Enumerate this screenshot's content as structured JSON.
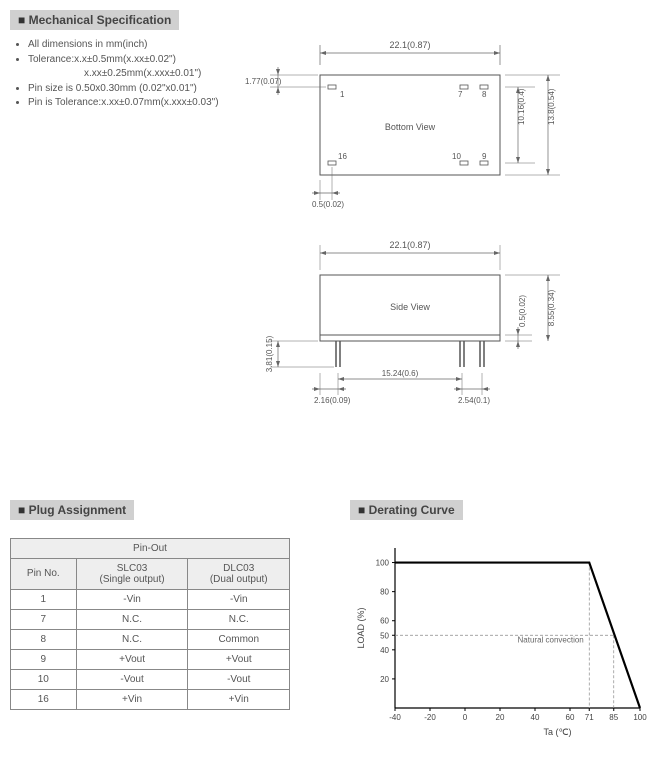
{
  "mech_spec": {
    "title": "Mechanical Specification",
    "notes": [
      "All dimensions in mm(inch)",
      "Tolerance:x.x±0.5mm(x.xx±0.02\")",
      "x.xx±0.25mm(x.xxx±0.01\")",
      "Pin size is 0.50x0.30mm (0.02\"x0.01\")",
      "Pin is Tolerance:x.xx±0.07mm(x.xxx±0.03\")"
    ],
    "bottom_view": {
      "label": "Bottom View",
      "width_dim": "22.1(0.87)",
      "height_inner": "10.16(0.4)",
      "height_outer": "13.8(0.54)",
      "left_offset": "1.77(0.07)",
      "bottom_offset": "0.5(0.02)",
      "pins": {
        "p1": "1",
        "p7": "7",
        "p8": "8",
        "p9": "9",
        "p10": "10",
        "p16": "16"
      }
    },
    "side_view": {
      "label": "Side View",
      "width_dim": "22.1(0.87)",
      "pin_height": "3.81(0.15)",
      "body_thin": "0.5(0.02)",
      "body_height": "8.55(0.34)",
      "left_gap": "2.16(0.09)",
      "pin_span": "15.24(0.6)",
      "right_gap": "2.54(0.1)"
    }
  },
  "plug": {
    "title": "Plug Assignment",
    "table_title": "Pin-Out",
    "headers": {
      "c1": "Pin No.",
      "c2": "SLC03\n(Single output)",
      "c3": "DLC03\n(Dual output)"
    },
    "rows": [
      {
        "pin": "1",
        "slc": "-Vin",
        "dlc": "-Vin"
      },
      {
        "pin": "7",
        "slc": "N.C.",
        "dlc": "N.C."
      },
      {
        "pin": "8",
        "slc": "N.C.",
        "dlc": "Common"
      },
      {
        "pin": "9",
        "slc": "+Vout",
        "dlc": "+Vout"
      },
      {
        "pin": "10",
        "slc": "-Vout",
        "dlc": "-Vout"
      },
      {
        "pin": "16",
        "slc": "+Vin",
        "dlc": "+Vin"
      }
    ]
  },
  "derating": {
    "title": "Derating Curve",
    "y_label": "LOAD (%)",
    "x_label": "Ta (℃)",
    "note": "Natural convection",
    "y_ticks": [
      "20",
      "40",
      "50",
      "60",
      "80",
      "100"
    ],
    "x_ticks": [
      "-40",
      "-20",
      "0",
      "20",
      "40",
      "60",
      "71",
      "85",
      "100"
    ],
    "knee_x": 71,
    "knee_y": 100,
    "dash_y": 50,
    "plot": {
      "x_min": -40,
      "x_max": 100,
      "y_min": 0,
      "y_max": 110,
      "line_color": "#000",
      "line_width": 2.2,
      "dash_color": "#888"
    }
  }
}
